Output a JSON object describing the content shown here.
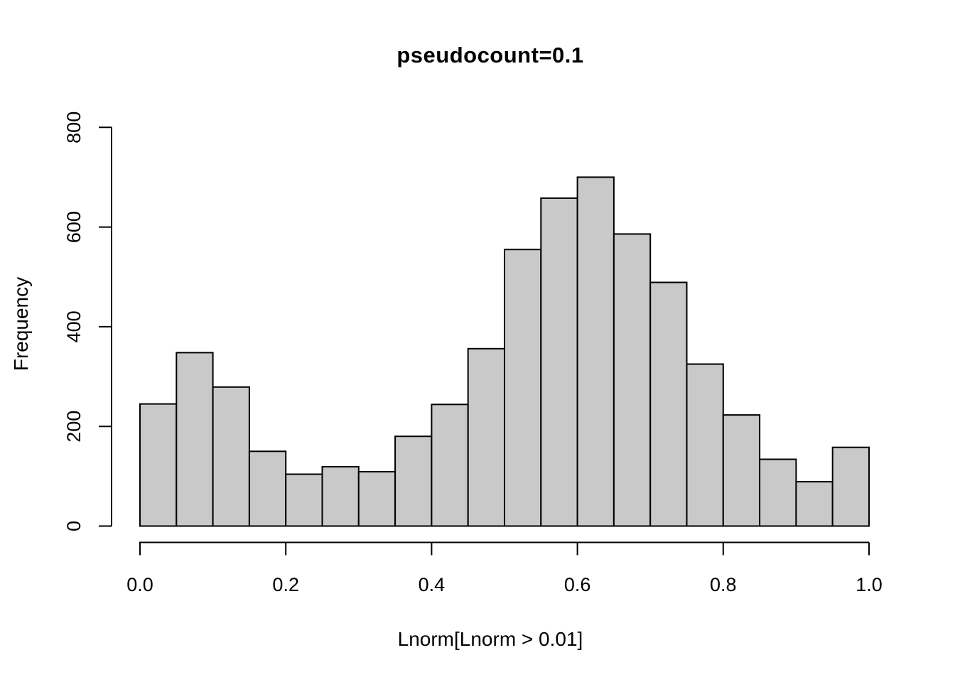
{
  "figure": {
    "background": "#ffffff"
  },
  "chart_data": {
    "type": "bar",
    "subtype": "histogram",
    "title": "pseudocount=0.1",
    "xlabel": "Lnorm[Lnorm > 0.01]",
    "ylabel": "Frequency",
    "xlim": [
      0.0,
      1.0
    ],
    "ylim": [
      0,
      800
    ],
    "grid": false,
    "legend_position": "none",
    "bin_edges": [
      0.0,
      0.05,
      0.1,
      0.15,
      0.2,
      0.25,
      0.3,
      0.35,
      0.4,
      0.45,
      0.5,
      0.55,
      0.6,
      0.65,
      0.7,
      0.75,
      0.8,
      0.85,
      0.9,
      0.95,
      1.0
    ],
    "values": [
      245,
      348,
      279,
      150,
      104,
      119,
      109,
      180,
      244,
      356,
      555,
      658,
      700,
      586,
      489,
      325,
      223,
      134,
      89,
      158
    ],
    "x_ticks": {
      "values": [
        0.0,
        0.2,
        0.4,
        0.6,
        0.8,
        1.0
      ],
      "labels": [
        "0.0",
        "0.2",
        "0.4",
        "0.6",
        "0.8",
        "1.0"
      ]
    },
    "y_ticks": {
      "values": [
        0,
        200,
        400,
        600,
        800
      ],
      "labels": [
        "0",
        "200",
        "400",
        "600",
        "800"
      ]
    },
    "bar_fill_color": "#c9c9c9",
    "bar_stroke_color": "#000000",
    "axis_color": "#000000",
    "text_color": "#000000"
  }
}
